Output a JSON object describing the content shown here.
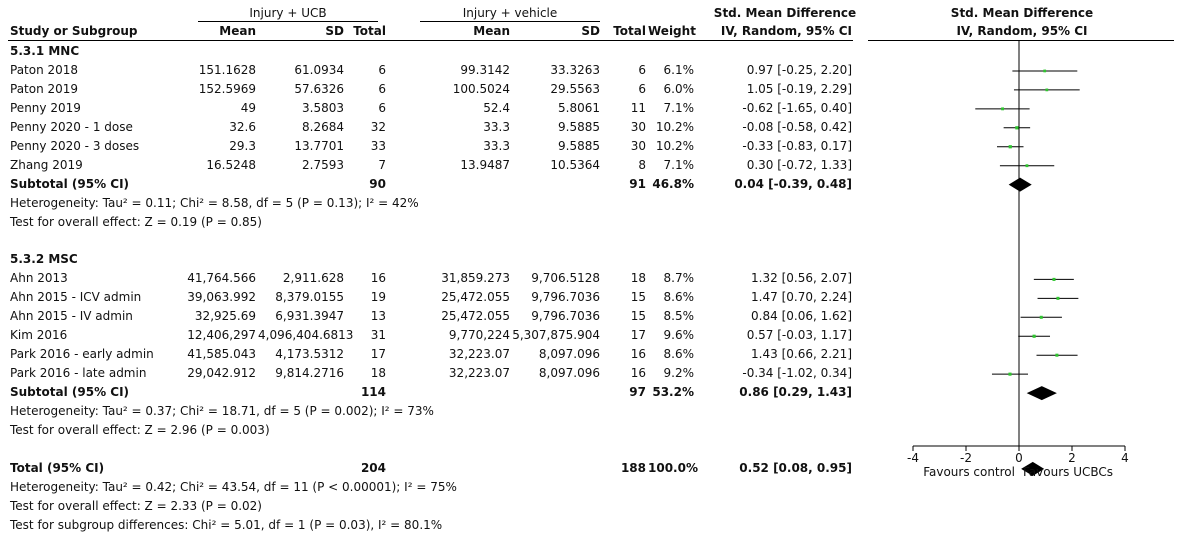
{
  "header": {
    "group1": "Injury + UCB",
    "group2": "Injury + vehicle",
    "effect_title": "Std. Mean Difference",
    "plot_title": "Std. Mean Difference",
    "col_study": "Study or Subgroup",
    "col_mean1": "Mean",
    "col_sd1": "SD",
    "col_total1": "Total",
    "col_mean2": "Mean",
    "col_sd2": "SD",
    "col_total2": "Total",
    "col_weight": "Weight",
    "col_ci": "IV, Random, 95% CI",
    "plot_subtitle": "IV, Random, 95% CI"
  },
  "rows": [
    {
      "kind": "subgroup",
      "label": "5.3.1 MNC"
    },
    {
      "kind": "study",
      "study": "Paton 2018",
      "m1": "151.1628",
      "sd1": "61.0934",
      "n1": "6",
      "m2": "99.3142",
      "sd2": "33.3263",
      "n2": "6",
      "w": "6.1%",
      "ci": "0.97 [-0.25, 2.20]"
    },
    {
      "kind": "study",
      "study": "Paton 2019",
      "m1": "152.5969",
      "sd1": "57.6326",
      "n1": "6",
      "m2": "100.5024",
      "sd2": "29.5563",
      "n2": "6",
      "w": "6.0%",
      "ci": "1.05 [-0.19, 2.29]"
    },
    {
      "kind": "study",
      "study": "Penny 2019",
      "m1": "49",
      "sd1": "3.5803",
      "n1": "6",
      "m2": "52.4",
      "sd2": "5.8061",
      "n2": "11",
      "w": "7.1%",
      "ci": "-0.62 [-1.65, 0.40]"
    },
    {
      "kind": "study",
      "study": "Penny 2020 - 1 dose",
      "m1": "32.6",
      "sd1": "8.2684",
      "n1": "32",
      "m2": "33.3",
      "sd2": "9.5885",
      "n2": "30",
      "w": "10.2%",
      "ci": "-0.08 [-0.58, 0.42]"
    },
    {
      "kind": "study",
      "study": "Penny 2020 - 3 doses",
      "m1": "29.3",
      "sd1": "13.7701",
      "n1": "33",
      "m2": "33.3",
      "sd2": "9.5885",
      "n2": "30",
      "w": "10.2%",
      "ci": "-0.33 [-0.83, 0.17]"
    },
    {
      "kind": "study",
      "study": "Zhang 2019",
      "m1": "16.5248",
      "sd1": "2.7593",
      "n1": "7",
      "m2": "13.9487",
      "sd2": "10.5364",
      "n2": "8",
      "w": "7.1%",
      "ci": "0.30 [-0.72, 1.33]"
    },
    {
      "kind": "subtotal",
      "study": "Subtotal (95% CI)",
      "n1": "90",
      "n2": "91",
      "w": "46.8%",
      "ci": "0.04 [-0.39, 0.48]"
    },
    {
      "kind": "text",
      "label": "Heterogeneity: Tau² = 0.11; Chi² = 8.58, df = 5 (P = 0.13); I² = 42%"
    },
    {
      "kind": "text",
      "label": "Test for overall effect: Z = 0.19 (P = 0.85)"
    },
    {
      "kind": "blank"
    },
    {
      "kind": "subgroup",
      "label": "5.3.2 MSC"
    },
    {
      "kind": "study",
      "study": "Ahn 2013",
      "m1": "41,764.566",
      "sd1": "2,911.628",
      "n1": "16",
      "m2": "31,859.273",
      "sd2": "9,706.5128",
      "n2": "18",
      "w": "8.7%",
      "ci": "1.32 [0.56, 2.07]"
    },
    {
      "kind": "study",
      "study": "Ahn 2015 - ICV admin",
      "m1": "39,063.992",
      "sd1": "8,379.0155",
      "n1": "19",
      "m2": "25,472.055",
      "sd2": "9,796.7036",
      "n2": "15",
      "w": "8.6%",
      "ci": "1.47 [0.70, 2.24]"
    },
    {
      "kind": "study",
      "study": "Ahn 2015 - IV admin",
      "m1": "32,925.69",
      "sd1": "6,931.3947",
      "n1": "13",
      "m2": "25,472.055",
      "sd2": "9,796.7036",
      "n2": "15",
      "w": "8.5%",
      "ci": "0.84 [0.06, 1.62]"
    },
    {
      "kind": "study",
      "study": "Kim 2016",
      "m1": "12,406,297",
      "sd1": "4,096,404.6813",
      "n1": "31",
      "m2": "9,770,224",
      "sd2": "5,307,875.904",
      "n2": "17",
      "w": "9.6%",
      "ci": "0.57 [-0.03, 1.17]"
    },
    {
      "kind": "study",
      "study": "Park 2016 - early admin",
      "m1": "41,585.043",
      "sd1": "4,173.5312",
      "n1": "17",
      "m2": "32,223.07",
      "sd2": "8,097.096",
      "n2": "16",
      "w": "8.6%",
      "ci": "1.43 [0.66, 2.21]"
    },
    {
      "kind": "study",
      "study": "Park 2016 - late admin",
      "m1": "29,042.912",
      "sd1": "9,814.2716",
      "n1": "18",
      "m2": "32,223.07",
      "sd2": "8,097.096",
      "n2": "16",
      "w": "9.2%",
      "ci": "-0.34 [-1.02, 0.34]"
    },
    {
      "kind": "subtotal",
      "study": "Subtotal (95% CI)",
      "n1": "114",
      "n2": "97",
      "w": "53.2%",
      "ci": "0.86 [0.29, 1.43]"
    },
    {
      "kind": "text",
      "label": "Heterogeneity: Tau² = 0.37; Chi² = 18.71, df = 5 (P = 0.002); I² = 73%"
    },
    {
      "kind": "text",
      "label": "Test for overall effect: Z = 2.96 (P = 0.003)"
    },
    {
      "kind": "blank"
    },
    {
      "kind": "subtotal",
      "study": "Total (95% CI)",
      "n1": "204",
      "n2": "188",
      "w": "100.0%",
      "ci": "0.52 [0.08, 0.95]"
    },
    {
      "kind": "text",
      "label": "Heterogeneity: Tau² = 0.42; Chi² = 43.54, df = 11 (P < 0.00001); I² = 75%"
    },
    {
      "kind": "text",
      "label": "Test for overall effect: Z = 2.33 (P = 0.02)"
    },
    {
      "kind": "text",
      "label": "Test for subgroup differences: Chi² = 5.01, df = 1 (P = 0.03), I² = 80.1%"
    }
  ],
  "chart_data": {
    "type": "forest",
    "xlim": [
      -4,
      4
    ],
    "ticks": [
      -4,
      -2,
      0,
      2,
      4
    ],
    "tick_labels": [
      "-4",
      "-2",
      "0",
      "2",
      "4"
    ],
    "left_label": "Favours control",
    "right_label": "Favours UCBCs",
    "colors": {
      "point": "#2fc52f",
      "line": "#000000",
      "diamond": "#000000"
    },
    "studies": [
      {
        "study": "Paton 2018",
        "est": 0.97,
        "lo": -0.25,
        "hi": 2.2,
        "weight": 6.1
      },
      {
        "study": "Paton 2019",
        "est": 1.05,
        "lo": -0.19,
        "hi": 2.29,
        "weight": 6.0
      },
      {
        "study": "Penny 2019",
        "est": -0.62,
        "lo": -1.65,
        "hi": 0.4,
        "weight": 7.1
      },
      {
        "study": "Penny 2020 - 1 dose",
        "est": -0.08,
        "lo": -0.58,
        "hi": 0.42,
        "weight": 10.2
      },
      {
        "study": "Penny 2020 - 3 doses",
        "est": -0.33,
        "lo": -0.83,
        "hi": 0.17,
        "weight": 10.2
      },
      {
        "study": "Zhang 2019",
        "est": 0.3,
        "lo": -0.72,
        "hi": 1.33,
        "weight": 7.1
      },
      {
        "study": "Ahn 2013",
        "est": 1.32,
        "lo": 0.56,
        "hi": 2.07,
        "weight": 8.7
      },
      {
        "study": "Ahn 2015 - ICV admin",
        "est": 1.47,
        "lo": 0.7,
        "hi": 2.24,
        "weight": 8.6
      },
      {
        "study": "Ahn 2015 - IV admin",
        "est": 0.84,
        "lo": 0.06,
        "hi": 1.62,
        "weight": 8.5
      },
      {
        "study": "Kim 2016",
        "est": 0.57,
        "lo": -0.03,
        "hi": 1.17,
        "weight": 9.6
      },
      {
        "study": "Park 2016 - early admin",
        "est": 1.43,
        "lo": 0.66,
        "hi": 2.21,
        "weight": 8.6
      },
      {
        "study": "Park 2016 - late admin",
        "est": -0.34,
        "lo": -1.02,
        "hi": 0.34,
        "weight": 9.2
      }
    ],
    "diamonds": [
      {
        "study": "Subtotal (95% CI)",
        "est": 0.04,
        "lo": -0.39,
        "hi": 0.48
      },
      {
        "study": "Subtotal (95% CI)",
        "est": 0.86,
        "lo": 0.29,
        "hi": 1.43
      },
      {
        "study": "Total (95% CI)",
        "est": 0.52,
        "lo": 0.08,
        "hi": 0.95
      }
    ]
  }
}
